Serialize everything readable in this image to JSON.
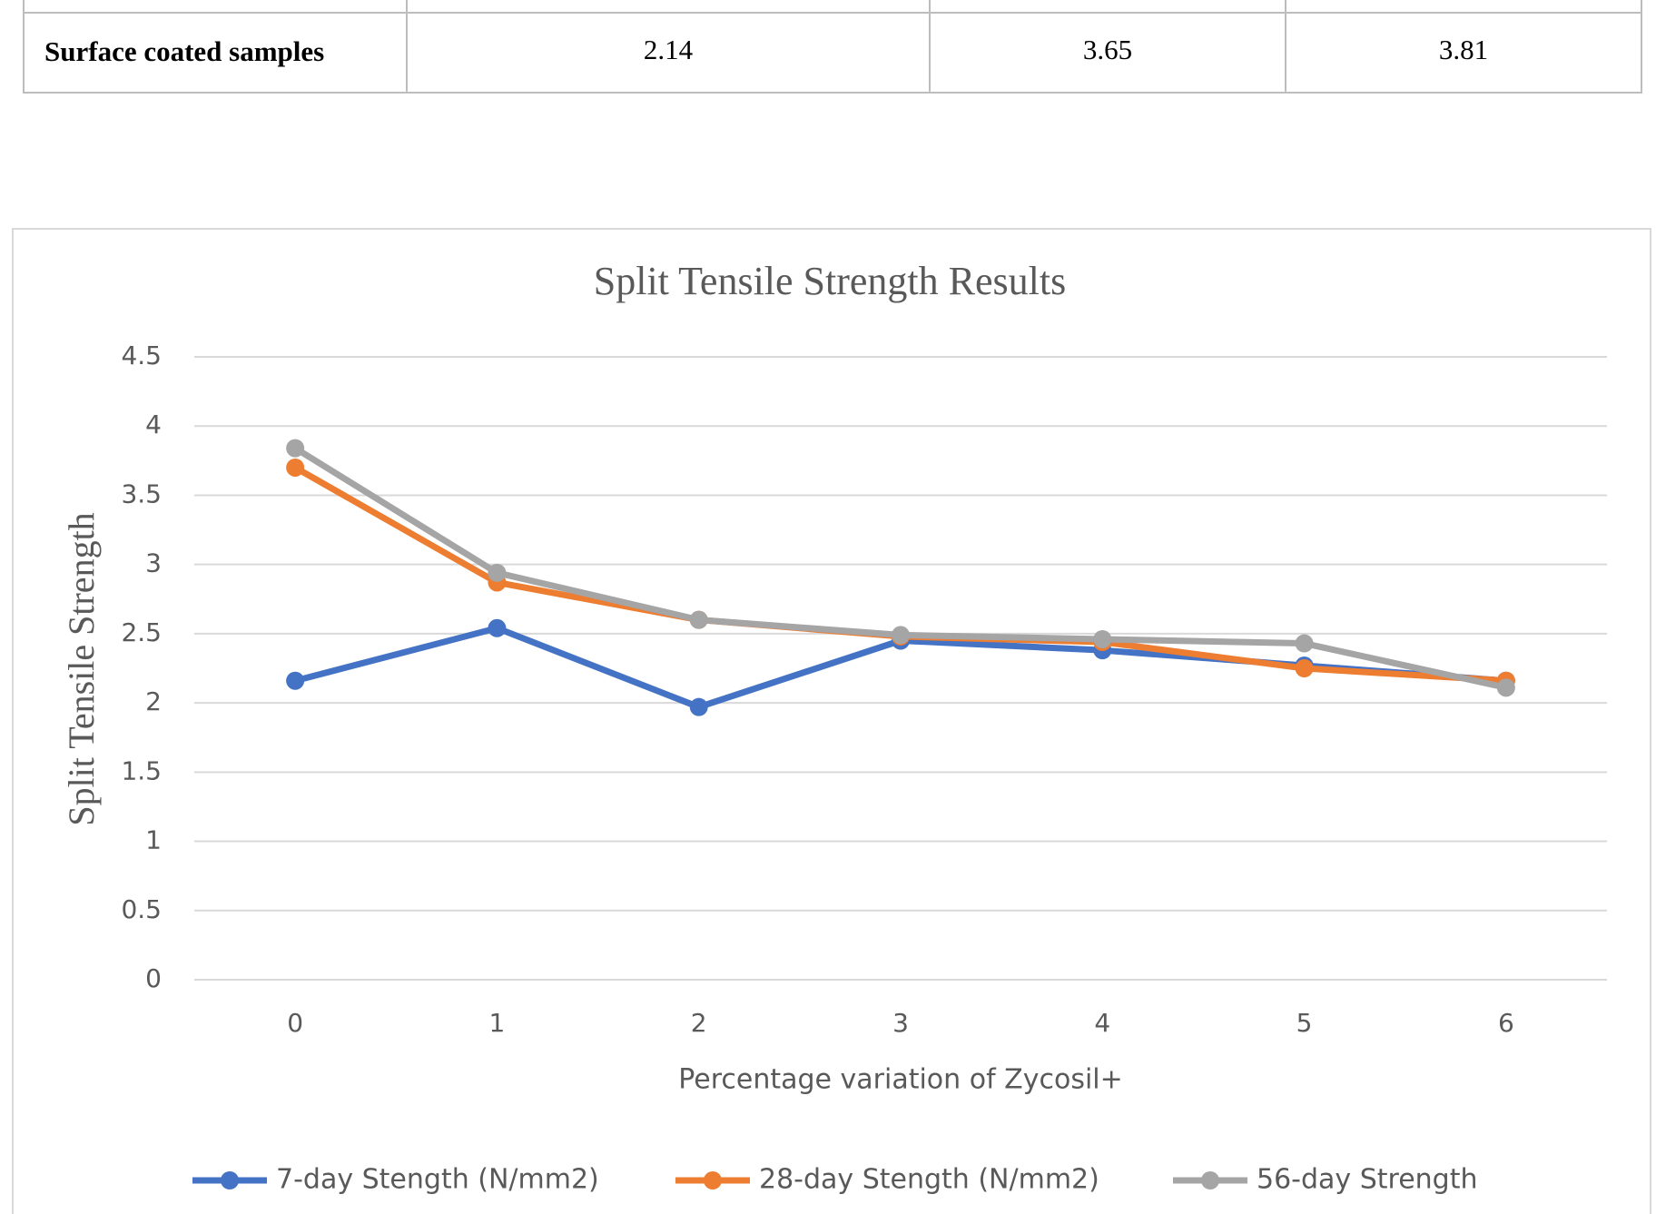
{
  "table": {
    "rows": [
      [
        "Surface coated samples",
        "2.14",
        "3.65",
        "3.81"
      ]
    ]
  },
  "chart_data": {
    "type": "line",
    "title": "Split Tensile Strength Results",
    "x_label": "Percentage variation of Zycosil+",
    "y_label": "Split Tensile Strength",
    "categories": [
      "0",
      "1",
      "2",
      "3",
      "4",
      "5",
      "6"
    ],
    "series": [
      {
        "name": "7-day Stength (N/mm2)",
        "color": "#4472c4",
        "values": [
          2.16,
          2.54,
          1.97,
          2.45,
          2.38,
          2.27,
          2.16
        ]
      },
      {
        "name": "28-day Stength (N/mm2)",
        "color": "#ed7d31",
        "values": [
          3.7,
          2.87,
          2.6,
          2.48,
          2.44,
          2.25,
          2.16
        ]
      },
      {
        "name": "56-day Strength",
        "color": "#a5a5a5",
        "values": [
          3.84,
          2.94,
          2.6,
          2.49,
          2.46,
          2.43,
          2.11
        ]
      }
    ],
    "ylim": [
      0,
      4.5
    ],
    "yticks": [
      0,
      0.5,
      1,
      1.5,
      2,
      2.5,
      3,
      3.5,
      4,
      4.5
    ],
    "grid": true,
    "legend": "bottom"
  }
}
